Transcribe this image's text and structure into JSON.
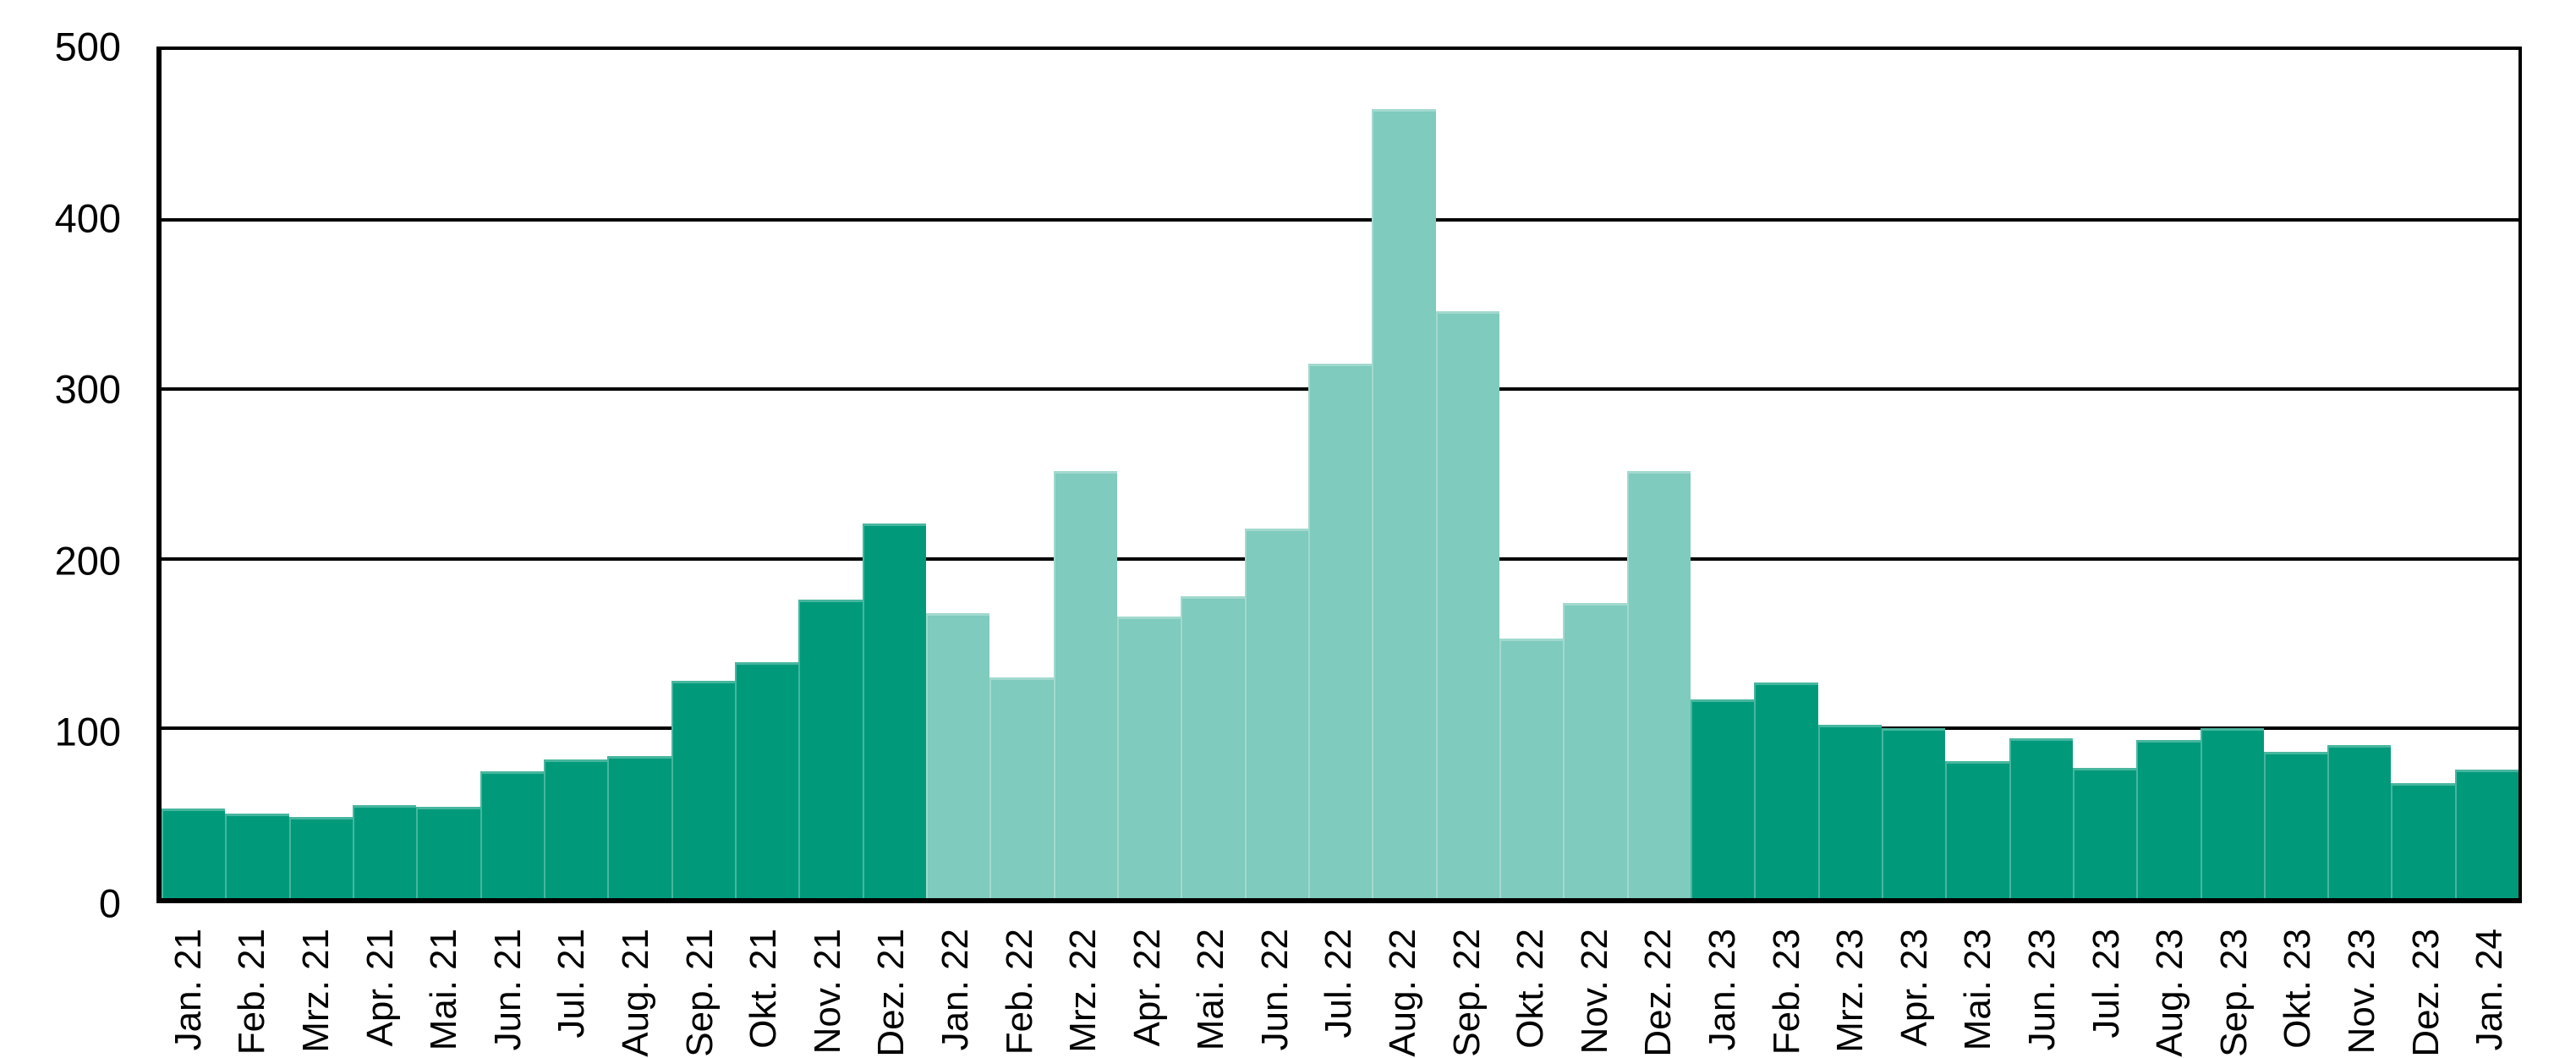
{
  "chart_data": {
    "type": "bar",
    "title": "",
    "xlabel": "",
    "ylabel": "",
    "ylim": [
      0,
      500
    ],
    "yticks": [
      0,
      100,
      200,
      300,
      400,
      500
    ],
    "grid": "horizontal",
    "legend": "none",
    "categories": [
      "Jan. 21",
      "Feb. 21",
      "Mrz. 21",
      "Apr. 21",
      "Mai. 21",
      "Jun. 21",
      "Jul. 21",
      "Aug. 21",
      "Sep. 21",
      "Okt. 21",
      "Nov. 21",
      "Dez. 21",
      "Jan. 22",
      "Feb. 22",
      "Mrz. 22",
      "Apr. 22",
      "Mai. 22",
      "Jun. 22",
      "Jul. 22",
      "Aug. 22",
      "Sep. 22",
      "Okt. 22",
      "Nov. 22",
      "Dez. 22",
      "Jan. 23",
      "Feb. 23",
      "Mrz. 23",
      "Apr. 23",
      "Mai. 23",
      "Jun. 23",
      "Jul. 23",
      "Aug. 23",
      "Sep. 23",
      "Okt. 23",
      "Nov. 23",
      "Dez. 23",
      "Jan. 24"
    ],
    "values": [
      53,
      50,
      48,
      55,
      54,
      75,
      82,
      84,
      128,
      139,
      176,
      221,
      168,
      130,
      252,
      166,
      178,
      218,
      315,
      465,
      346,
      153,
      174,
      252,
      117,
      127,
      102,
      100,
      81,
      94,
      77,
      93,
      100,
      86,
      90,
      68,
      76
    ],
    "groups": [
      {
        "label": "2021",
        "count": 12,
        "color": "#009a7b"
      },
      {
        "label": "2022",
        "count": 12,
        "color": "#7fcbbd"
      },
      {
        "label": "2023",
        "count": 12,
        "color": "#009a7b"
      },
      {
        "label": "2024",
        "count": 1,
        "color": "#009a7b"
      }
    ]
  },
  "colors": {
    "dark_teal": "#009a7b",
    "light_teal": "#7fcbbd",
    "axis": "#000000",
    "background": "#ffffff"
  }
}
